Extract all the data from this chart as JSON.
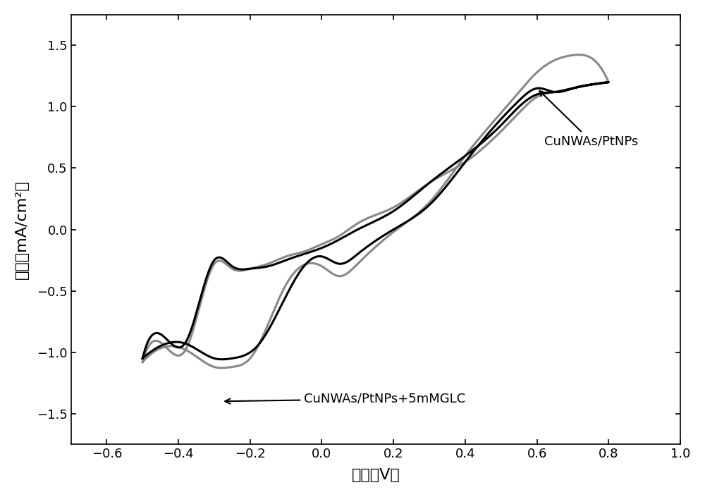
{
  "xlabel": "电压（V）",
  "ylabel": "电流（mA/cm²）",
  "xlim": [
    -0.7,
    1.0
  ],
  "ylim": [
    -1.75,
    1.75
  ],
  "xticks": [
    -0.6,
    -0.4,
    -0.2,
    0.0,
    0.2,
    0.4,
    0.6,
    0.8,
    1.0
  ],
  "yticks": [
    -1.5,
    -1.0,
    -0.5,
    0.0,
    0.5,
    1.0,
    1.5
  ],
  "color_black": "#000000",
  "color_gray": "#888888",
  "label_cunwas_ptnps": "CuNWAs/PtNPs",
  "label_glucose": "CuNWAs/PtNPs+5mMGLC",
  "background_color": "#ffffff",
  "line_width": 2.2
}
